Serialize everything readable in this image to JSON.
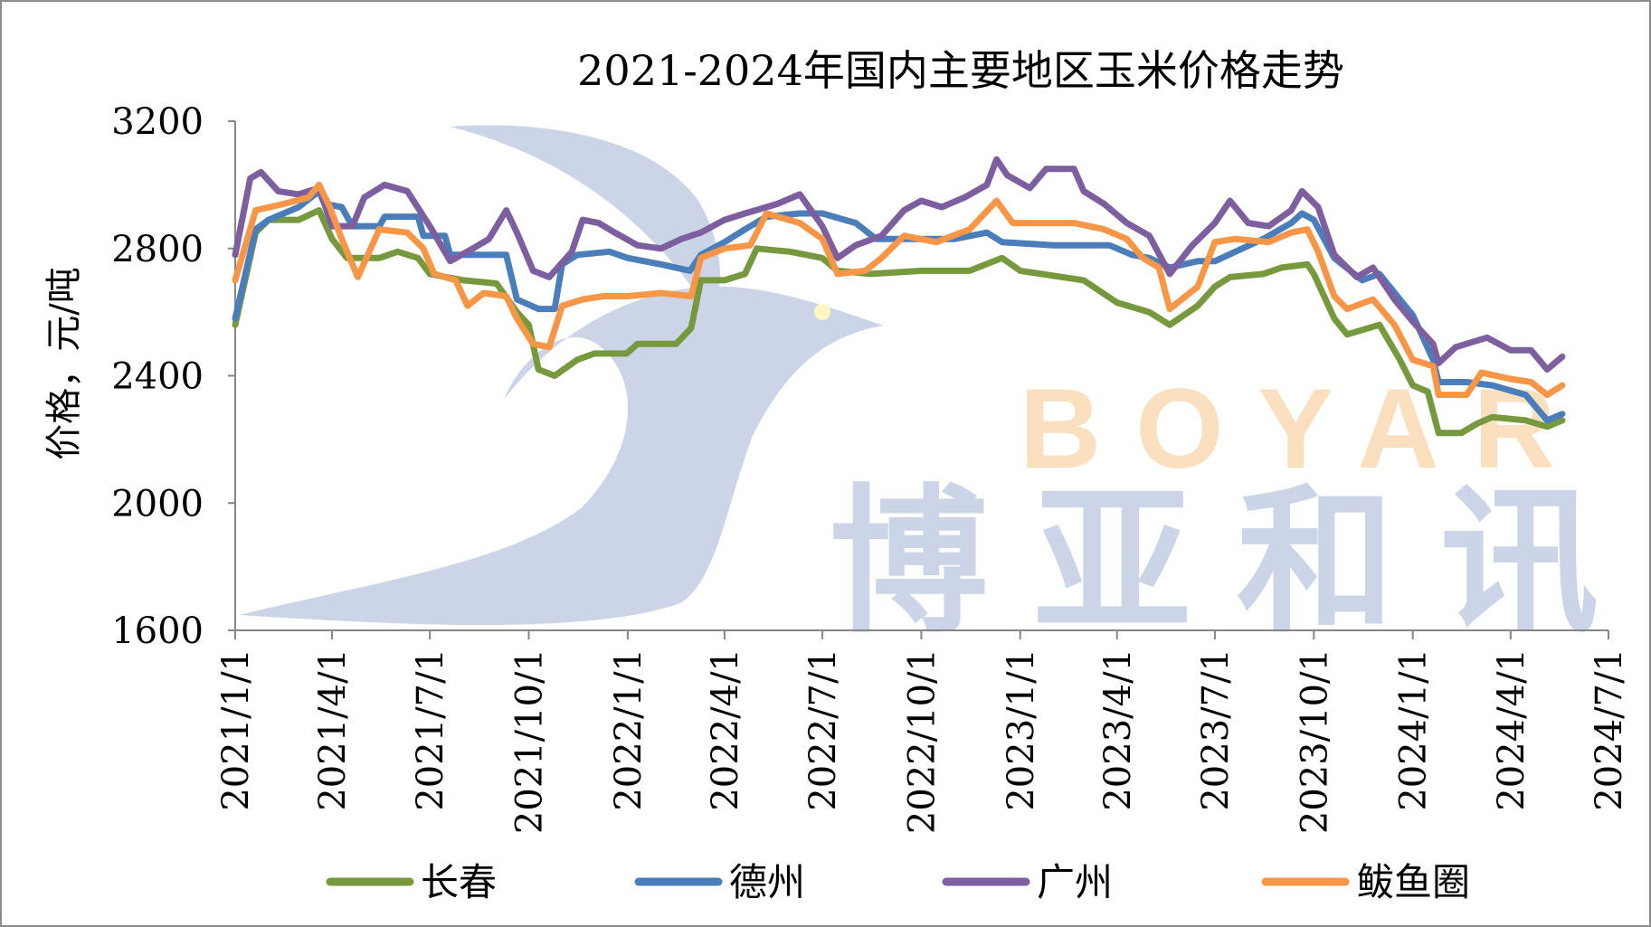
{
  "chart_data": {
    "type": "line",
    "title": "2021-2024年国内主要地区玉米价格走势",
    "xlabel": "",
    "ylabel": "价格，元/吨",
    "ylim": [
      1600,
      3200
    ],
    "yticks": [
      "1600",
      "2000",
      "2400",
      "2800",
      "3200"
    ],
    "xlim": [
      "2021-01-01",
      "2024-07-01"
    ],
    "xticks": [
      "2021/1/1",
      "2021/4/1",
      "2021/7/1",
      "2021/10/1",
      "2022/1/1",
      "2022/4/1",
      "2022/7/1",
      "2022/10/1",
      "2023/1/1",
      "2023/4/1",
      "2023/7/1",
      "2023/10/1",
      "2024/1/1",
      "2024/4/1",
      "2024/7/1"
    ],
    "grid": false,
    "legend": "bottom",
    "watermark": {
      "latin": "BOYAR",
      "chinese": "博亚和讯"
    },
    "series": [
      {
        "name": "长春",
        "color": "#77993d",
        "points": [
          [
            "2021-01-01",
            2560
          ],
          [
            "2021-01-20",
            2850
          ],
          [
            "2021-02-01",
            2890
          ],
          [
            "2021-03-01",
            2890
          ],
          [
            "2021-03-20",
            2920
          ],
          [
            "2021-04-01",
            2830
          ],
          [
            "2021-04-15",
            2770
          ],
          [
            "2021-05-15",
            2770
          ],
          [
            "2021-06-01",
            2790
          ],
          [
            "2021-06-20",
            2770
          ],
          [
            "2021-07-01",
            2720
          ],
          [
            "2021-08-01",
            2700
          ],
          [
            "2021-09-01",
            2690
          ],
          [
            "2021-09-20",
            2600
          ],
          [
            "2021-10-01",
            2560
          ],
          [
            "2021-10-10",
            2420
          ],
          [
            "2021-10-25",
            2400
          ],
          [
            "2021-11-15",
            2450
          ],
          [
            "2021-12-01",
            2470
          ],
          [
            "2021-12-31",
            2470
          ],
          [
            "2022-01-10",
            2500
          ],
          [
            "2022-02-15",
            2500
          ],
          [
            "2022-03-01",
            2550
          ],
          [
            "2022-03-10",
            2700
          ],
          [
            "2022-04-01",
            2700
          ],
          [
            "2022-04-20",
            2720
          ],
          [
            "2022-05-01",
            2800
          ],
          [
            "2022-06-01",
            2790
          ],
          [
            "2022-07-01",
            2770
          ],
          [
            "2022-07-15",
            2730
          ],
          [
            "2022-08-15",
            2720
          ],
          [
            "2022-10-01",
            2730
          ],
          [
            "2022-11-15",
            2730
          ],
          [
            "2022-12-15",
            2770
          ],
          [
            "2023-01-01",
            2730
          ],
          [
            "2023-03-01",
            2700
          ],
          [
            "2023-04-01",
            2630
          ],
          [
            "2023-05-01",
            2600
          ],
          [
            "2023-05-20",
            2560
          ],
          [
            "2023-06-15",
            2620
          ],
          [
            "2023-07-01",
            2680
          ],
          [
            "2023-07-15",
            2710
          ],
          [
            "2023-08-15",
            2720
          ],
          [
            "2023-09-01",
            2740
          ],
          [
            "2023-09-25",
            2750
          ],
          [
            "2023-10-01",
            2720
          ],
          [
            "2023-10-20",
            2580
          ],
          [
            "2023-11-01",
            2530
          ],
          [
            "2023-12-01",
            2560
          ],
          [
            "2023-12-20",
            2450
          ],
          [
            "2024-01-01",
            2370
          ],
          [
            "2024-01-15",
            2350
          ],
          [
            "2024-01-25",
            2220
          ],
          [
            "2024-02-15",
            2220
          ],
          [
            "2024-03-01",
            2250
          ],
          [
            "2024-03-15",
            2270
          ],
          [
            "2024-04-15",
            2260
          ],
          [
            "2024-05-05",
            2240
          ],
          [
            "2024-05-19",
            2260
          ]
        ]
      },
      {
        "name": "德州",
        "color": "#4a7ebb",
        "points": [
          [
            "2021-01-01",
            2580
          ],
          [
            "2021-01-20",
            2860
          ],
          [
            "2021-02-01",
            2890
          ],
          [
            "2021-03-01",
            2930
          ],
          [
            "2021-03-20",
            2980
          ],
          [
            "2021-03-25",
            2940
          ],
          [
            "2021-04-10",
            2930
          ],
          [
            "2021-04-20",
            2870
          ],
          [
            "2021-05-15",
            2870
          ],
          [
            "2021-05-20",
            2900
          ],
          [
            "2021-06-20",
            2900
          ],
          [
            "2021-06-25",
            2840
          ],
          [
            "2021-07-15",
            2840
          ],
          [
            "2021-07-20",
            2780
          ],
          [
            "2021-08-20",
            2780
          ],
          [
            "2021-09-10",
            2780
          ],
          [
            "2021-09-20",
            2640
          ],
          [
            "2021-10-10",
            2610
          ],
          [
            "2021-10-25",
            2610
          ],
          [
            "2021-11-01",
            2750
          ],
          [
            "2021-11-15",
            2780
          ],
          [
            "2021-12-15",
            2790
          ],
          [
            "2022-01-01",
            2770
          ],
          [
            "2022-02-01",
            2750
          ],
          [
            "2022-02-28",
            2730
          ],
          [
            "2022-03-10",
            2780
          ],
          [
            "2022-04-01",
            2820
          ],
          [
            "2022-04-20",
            2860
          ],
          [
            "2022-05-10",
            2900
          ],
          [
            "2022-06-10",
            2910
          ],
          [
            "2022-07-01",
            2910
          ],
          [
            "2022-08-01",
            2880
          ],
          [
            "2022-08-20",
            2830
          ],
          [
            "2022-10-01",
            2830
          ],
          [
            "2022-11-01",
            2830
          ],
          [
            "2022-12-01",
            2850
          ],
          [
            "2022-12-15",
            2820
          ],
          [
            "2023-02-01",
            2810
          ],
          [
            "2023-03-25",
            2810
          ],
          [
            "2023-04-15",
            2780
          ],
          [
            "2023-05-01",
            2770
          ],
          [
            "2023-05-20",
            2740
          ],
          [
            "2023-06-15",
            2760
          ],
          [
            "2023-07-01",
            2760
          ],
          [
            "2023-07-20",
            2790
          ],
          [
            "2023-08-15",
            2830
          ],
          [
            "2023-09-10",
            2880
          ],
          [
            "2023-09-20",
            2910
          ],
          [
            "2023-10-01",
            2890
          ],
          [
            "2023-10-20",
            2770
          ],
          [
            "2023-11-15",
            2700
          ],
          [
            "2023-12-01",
            2720
          ],
          [
            "2023-12-20",
            2640
          ],
          [
            "2024-01-01",
            2590
          ],
          [
            "2024-01-20",
            2450
          ],
          [
            "2024-01-25",
            2380
          ],
          [
            "2024-02-20",
            2380
          ],
          [
            "2024-03-15",
            2370
          ],
          [
            "2024-04-15",
            2340
          ],
          [
            "2024-05-05",
            2260
          ],
          [
            "2024-05-19",
            2280
          ]
        ]
      },
      {
        "name": "广州",
        "color": "#7d5fa0",
        "points": [
          [
            "2021-01-01",
            2780
          ],
          [
            "2021-01-15",
            3020
          ],
          [
            "2021-01-25",
            3040
          ],
          [
            "2021-02-10",
            2980
          ],
          [
            "2021-03-01",
            2970
          ],
          [
            "2021-03-20",
            2990
          ],
          [
            "2021-04-01",
            2870
          ],
          [
            "2021-04-20",
            2870
          ],
          [
            "2021-05-01",
            2960
          ],
          [
            "2021-05-20",
            3000
          ],
          [
            "2021-06-10",
            2980
          ],
          [
            "2021-07-01",
            2870
          ],
          [
            "2021-07-20",
            2760
          ],
          [
            "2021-08-10",
            2800
          ],
          [
            "2021-08-25",
            2830
          ],
          [
            "2021-09-10",
            2920
          ],
          [
            "2021-09-20",
            2850
          ],
          [
            "2021-10-05",
            2730
          ],
          [
            "2021-10-20",
            2710
          ],
          [
            "2021-11-10",
            2790
          ],
          [
            "2021-11-20",
            2890
          ],
          [
            "2021-12-05",
            2880
          ],
          [
            "2021-12-20",
            2850
          ],
          [
            "2022-01-10",
            2810
          ],
          [
            "2022-02-01",
            2800
          ],
          [
            "2022-02-20",
            2830
          ],
          [
            "2022-03-10",
            2850
          ],
          [
            "2022-04-01",
            2890
          ],
          [
            "2022-04-20",
            2910
          ],
          [
            "2022-05-20",
            2940
          ],
          [
            "2022-06-10",
            2970
          ],
          [
            "2022-07-01",
            2870
          ],
          [
            "2022-07-15",
            2770
          ],
          [
            "2022-08-01",
            2810
          ],
          [
            "2022-08-25",
            2840
          ],
          [
            "2022-09-15",
            2920
          ],
          [
            "2022-10-01",
            2950
          ],
          [
            "2022-10-20",
            2930
          ],
          [
            "2022-11-10",
            2960
          ],
          [
            "2022-12-01",
            3000
          ],
          [
            "2022-12-10",
            3080
          ],
          [
            "2022-12-20",
            3030
          ],
          [
            "2023-01-10",
            2990
          ],
          [
            "2023-01-25",
            3050
          ],
          [
            "2023-02-20",
            3050
          ],
          [
            "2023-03-01",
            2980
          ],
          [
            "2023-03-20",
            2940
          ],
          [
            "2023-04-10",
            2880
          ],
          [
            "2023-05-01",
            2840
          ],
          [
            "2023-05-20",
            2720
          ],
          [
            "2023-06-10",
            2810
          ],
          [
            "2023-07-01",
            2880
          ],
          [
            "2023-07-15",
            2950
          ],
          [
            "2023-08-01",
            2880
          ],
          [
            "2023-08-20",
            2870
          ],
          [
            "2023-09-10",
            2920
          ],
          [
            "2023-09-20",
            2980
          ],
          [
            "2023-10-05",
            2930
          ],
          [
            "2023-10-20",
            2780
          ],
          [
            "2023-11-10",
            2710
          ],
          [
            "2023-11-25",
            2740
          ],
          [
            "2023-12-15",
            2640
          ],
          [
            "2024-01-01",
            2570
          ],
          [
            "2024-01-20",
            2500
          ],
          [
            "2024-01-25",
            2440
          ],
          [
            "2024-02-10",
            2490
          ],
          [
            "2024-03-10",
            2520
          ],
          [
            "2024-04-01",
            2480
          ],
          [
            "2024-04-20",
            2480
          ],
          [
            "2024-05-05",
            2420
          ],
          [
            "2024-05-19",
            2460
          ]
        ]
      },
      {
        "name": "鲅鱼圈",
        "color": "#f79646",
        "points": [
          [
            "2021-01-01",
            2700
          ],
          [
            "2021-01-20",
            2920
          ],
          [
            "2021-02-15",
            2940
          ],
          [
            "2021-03-10",
            2960
          ],
          [
            "2021-03-20",
            3000
          ],
          [
            "2021-03-30",
            2930
          ],
          [
            "2021-04-10",
            2830
          ],
          [
            "2021-04-25",
            2710
          ],
          [
            "2021-05-15",
            2860
          ],
          [
            "2021-06-10",
            2850
          ],
          [
            "2021-06-25",
            2800
          ],
          [
            "2021-07-05",
            2720
          ],
          [
            "2021-07-25",
            2700
          ],
          [
            "2021-08-05",
            2620
          ],
          [
            "2021-08-20",
            2660
          ],
          [
            "2021-09-10",
            2650
          ],
          [
            "2021-09-20",
            2580
          ],
          [
            "2021-10-05",
            2500
          ],
          [
            "2021-10-20",
            2490
          ],
          [
            "2021-11-01",
            2620
          ],
          [
            "2021-11-20",
            2640
          ],
          [
            "2021-12-10",
            2650
          ],
          [
            "2022-01-01",
            2650
          ],
          [
            "2022-02-01",
            2660
          ],
          [
            "2022-03-01",
            2650
          ],
          [
            "2022-03-10",
            2770
          ],
          [
            "2022-04-01",
            2800
          ],
          [
            "2022-04-25",
            2810
          ],
          [
            "2022-05-10",
            2910
          ],
          [
            "2022-06-10",
            2880
          ],
          [
            "2022-07-01",
            2830
          ],
          [
            "2022-07-15",
            2720
          ],
          [
            "2022-08-10",
            2730
          ],
          [
            "2022-08-25",
            2770
          ],
          [
            "2022-09-15",
            2840
          ],
          [
            "2022-10-15",
            2820
          ],
          [
            "2022-11-15",
            2860
          ],
          [
            "2022-12-10",
            2950
          ],
          [
            "2022-12-25",
            2880
          ],
          [
            "2023-01-20",
            2880
          ],
          [
            "2023-02-20",
            2880
          ],
          [
            "2023-03-20",
            2860
          ],
          [
            "2023-04-10",
            2830
          ],
          [
            "2023-04-25",
            2770
          ],
          [
            "2023-05-10",
            2740
          ],
          [
            "2023-05-20",
            2610
          ],
          [
            "2023-06-15",
            2680
          ],
          [
            "2023-07-01",
            2820
          ],
          [
            "2023-07-20",
            2830
          ],
          [
            "2023-08-20",
            2820
          ],
          [
            "2023-09-10",
            2850
          ],
          [
            "2023-09-25",
            2860
          ],
          [
            "2023-10-05",
            2790
          ],
          [
            "2023-10-20",
            2650
          ],
          [
            "2023-11-01",
            2610
          ],
          [
            "2023-11-25",
            2640
          ],
          [
            "2023-12-15",
            2560
          ],
          [
            "2024-01-01",
            2450
          ],
          [
            "2024-01-20",
            2430
          ],
          [
            "2024-01-25",
            2340
          ],
          [
            "2024-02-20",
            2340
          ],
          [
            "2024-03-05",
            2410
          ],
          [
            "2024-04-01",
            2390
          ],
          [
            "2024-04-20",
            2380
          ],
          [
            "2024-05-05",
            2340
          ],
          [
            "2024-05-19",
            2370
          ]
        ]
      }
    ]
  }
}
